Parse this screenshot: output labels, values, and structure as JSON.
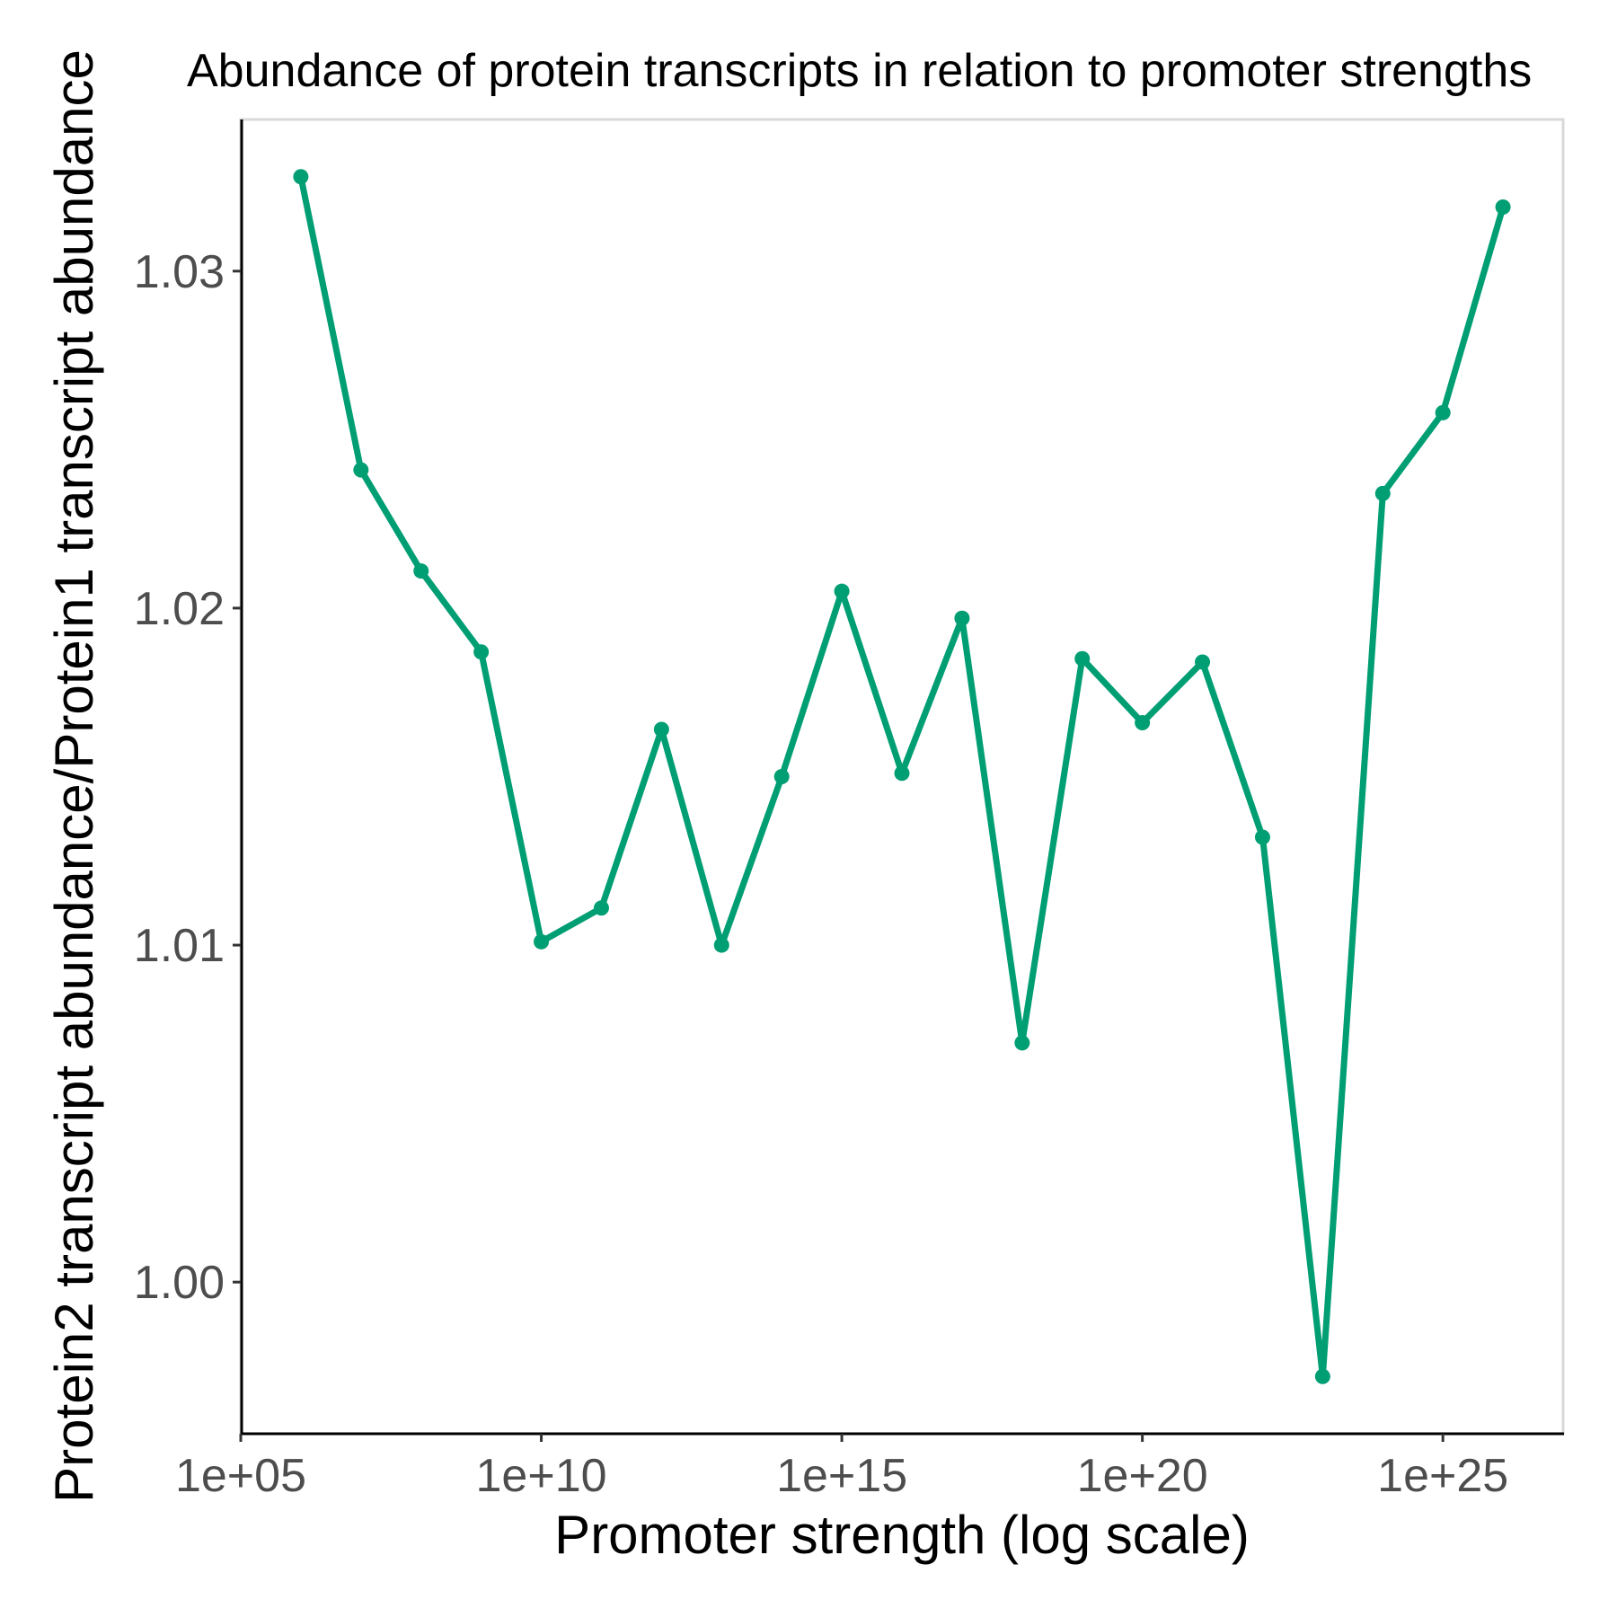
{
  "chart_data": {
    "type": "line",
    "title": "Abundance of protein transcripts in relation to promoter strengths",
    "xlabel": "Promoter strength (log scale)",
    "ylabel": "Protein2 transcript abundance/Protein1 transcript abundance",
    "x_scale": "log10",
    "xlim": [
      100000.0,
      1e+27
    ],
    "ylim": [
      0.9955,
      1.0345
    ],
    "x_ticks": [
      {
        "value": 100000.0,
        "label": "1e+05"
      },
      {
        "value": 10000000000.0,
        "label": "1e+10"
      },
      {
        "value": 1000000000000000.0,
        "label": "1e+15"
      },
      {
        "value": 1e+20,
        "label": "1e+20"
      },
      {
        "value": 1e+25,
        "label": "1e+25"
      }
    ],
    "y_ticks": [
      {
        "value": 1.0,
        "label": "1.00"
      },
      {
        "value": 1.01,
        "label": "1.01"
      },
      {
        "value": 1.02,
        "label": "1.02"
      },
      {
        "value": 1.03,
        "label": "1.03"
      }
    ],
    "grid": false,
    "line_color": "#009E73",
    "series": [
      {
        "x": [
          1000000.0,
          10000000.0,
          100000000.0,
          1000000000.0,
          10000000000.0,
          100000000000.0,
          1000000000000.0,
          10000000000000.0,
          100000000000000.0,
          1000000000000000.0,
          1e+16,
          1e+17,
          1e+18,
          1e+19,
          1e+20,
          1e+21,
          1e+22,
          1e+23,
          1e+24,
          1e+25,
          1e+26
        ],
        "y": [
          1.0328,
          1.0241,
          1.0211,
          1.0187,
          1.0101,
          1.0111,
          1.0164,
          1.01,
          1.015,
          1.0205,
          1.0151,
          1.0197,
          1.0071,
          1.0185,
          1.0166,
          1.0184,
          1.0132,
          0.9972,
          1.0234,
          1.0258,
          1.0319
        ]
      }
    ]
  }
}
